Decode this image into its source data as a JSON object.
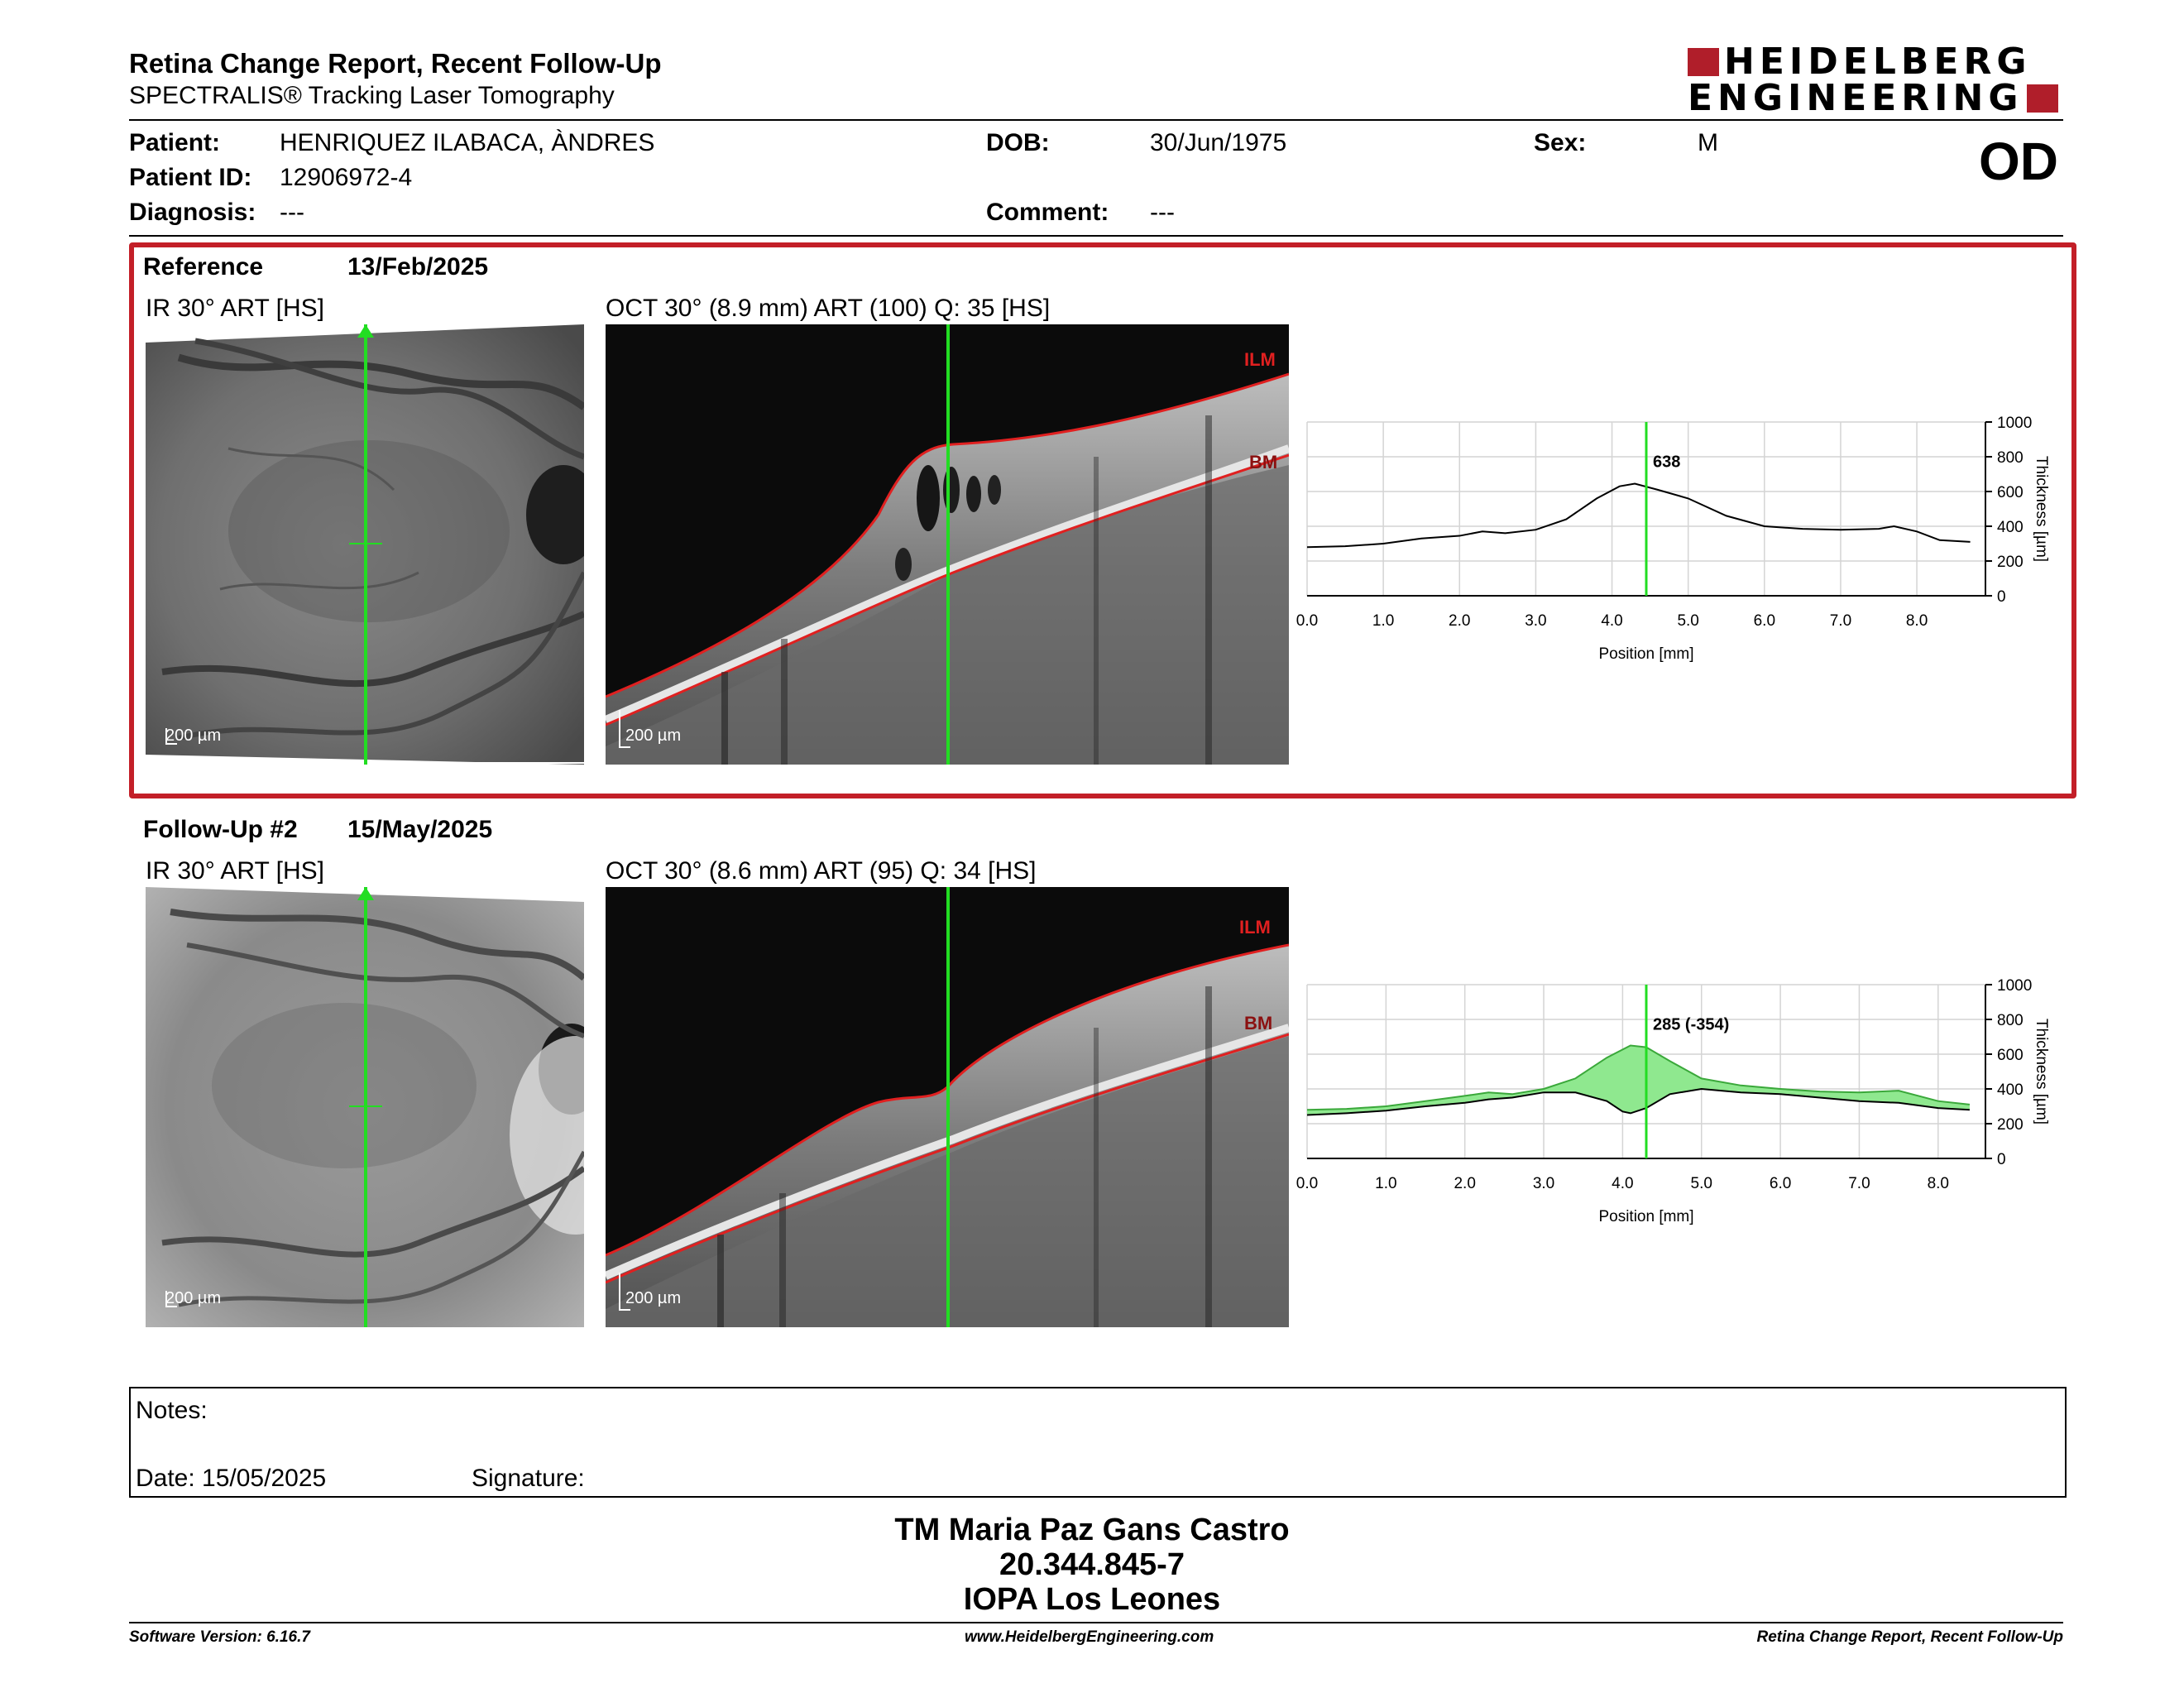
{
  "header": {
    "title": "Retina Change Report, Recent Follow-Up",
    "subtitle": "SPECTRALIS® Tracking Laser Tomography",
    "logo_line1": "HEIDELBERG",
    "logo_line2": "ENGINEERING",
    "eye": "OD"
  },
  "patient": {
    "patient_label": "Patient:",
    "patient_value": "HENRIQUEZ ILABACA, ÀNDRES",
    "id_label": "Patient ID:",
    "id_value": "12906972-4",
    "diagnosis_label": "Diagnosis:",
    "diagnosis_value": "---",
    "dob_label": "DOB:",
    "dob_value": "30/Jun/1975",
    "comment_label": "Comment:",
    "comment_value": "---",
    "sex_label": "Sex:",
    "sex_value": "M"
  },
  "reference": {
    "label": "Reference",
    "date": "13/Feb/2025",
    "ir_label": "IR 30° ART [HS]",
    "oct_label": "OCT 30° (8.9 mm) ART (100) Q: 35 [HS]",
    "scale_ir": "200 µm",
    "scale_oct": "200 µm",
    "ilm": "ILM",
    "bm": "BM"
  },
  "followup": {
    "label": "Follow-Up #2",
    "date": "15/May/2025",
    "ir_label": "IR 30° ART [HS]",
    "oct_label": "OCT 30° (8.6 mm) ART (95) Q: 34 [HS]",
    "scale_ir": "200 µm",
    "scale_oct": "200 µm",
    "ilm": "ILM",
    "bm": "BM"
  },
  "notes": {
    "notes_label": "Notes:",
    "date_label": "Date: 15/05/2025",
    "signature_label": "Signature:"
  },
  "signature_block": {
    "line1": "TM Maria Paz Gans Castro",
    "line2": "20.344.845-7",
    "line3": "IOPA Los Leones"
  },
  "footer": {
    "left": "Software Version: 6.16.7",
    "center": "www.HeidelbergEngineering.com",
    "right": "Retina Change Report, Recent Follow-Up"
  },
  "colors": {
    "accent_red": "#c31f28",
    "cursor_green": "#22dd22",
    "change_fill": "#8fe88f"
  },
  "chart_data": [
    {
      "type": "line",
      "xlabel": "Position [mm]",
      "ylabel": "Thickness [µm]",
      "xlim": [
        0,
        8.9
      ],
      "ylim": [
        0,
        1000
      ],
      "xticks": [
        "0.0",
        "1.0",
        "2.0",
        "3.0",
        "4.0",
        "5.0",
        "6.0",
        "7.0",
        "8.0"
      ],
      "yticks": [
        "0",
        "200",
        "400",
        "600",
        "800",
        "1000"
      ],
      "cursor_x": 4.45,
      "cursor_label": "638",
      "grid": true,
      "series": [
        {
          "x": [
            0,
            0.5,
            1.0,
            1.5,
            2.0,
            2.3,
            2.6,
            3.0,
            3.4,
            3.8,
            4.1,
            4.3,
            4.6,
            5.0,
            5.5,
            6.0,
            6.5,
            7.0,
            7.5,
            7.7,
            8.0,
            8.3,
            8.7
          ],
          "values": [
            280,
            285,
            300,
            330,
            345,
            370,
            360,
            380,
            440,
            560,
            630,
            645,
            610,
            560,
            460,
            400,
            385,
            380,
            385,
            400,
            370,
            320,
            310
          ]
        }
      ]
    },
    {
      "type": "area",
      "xlabel": "Position [mm]",
      "ylabel": "Thickness [µm]",
      "xlim": [
        0,
        8.6
      ],
      "ylim": [
        0,
        1000
      ],
      "xticks": [
        "0.0",
        "1.0",
        "2.0",
        "3.0",
        "4.0",
        "5.0",
        "6.0",
        "7.0",
        "8.0"
      ],
      "yticks": [
        "0",
        "200",
        "400",
        "600",
        "800",
        "1000"
      ],
      "cursor_x": 4.3,
      "cursor_label": "285 (-354)",
      "grid": true,
      "series": [
        {
          "x": [
            0,
            0.5,
            1.0,
            1.5,
            2.0,
            2.3,
            2.6,
            3.0,
            3.4,
            3.8,
            4.1,
            4.3,
            4.6,
            5.0,
            5.5,
            6.0,
            6.5,
            7.0,
            7.5,
            8.0,
            8.4
          ],
          "values": [
            280,
            285,
            300,
            330,
            360,
            380,
            370,
            400,
            460,
            580,
            650,
            640,
            560,
            460,
            420,
            400,
            385,
            380,
            390,
            330,
            310
          ]
        },
        {
          "x": [
            0,
            0.5,
            1.0,
            1.5,
            2.0,
            2.3,
            2.6,
            3.0,
            3.4,
            3.8,
            4.0,
            4.1,
            4.3,
            4.6,
            5.0,
            5.5,
            6.0,
            6.5,
            7.0,
            7.5,
            8.0,
            8.4
          ],
          "values": [
            250,
            260,
            275,
            300,
            320,
            340,
            350,
            380,
            380,
            330,
            270,
            260,
            290,
            370,
            400,
            380,
            370,
            350,
            330,
            320,
            290,
            280
          ]
        }
      ]
    }
  ]
}
